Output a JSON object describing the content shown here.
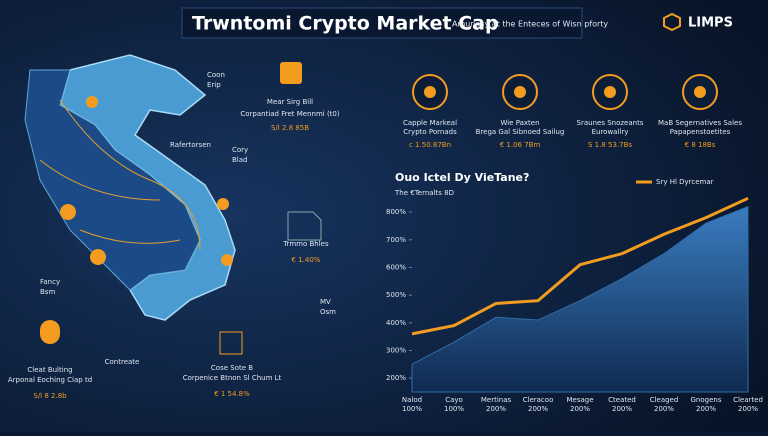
{
  "header": {
    "title": "Trwntomi Crypto Market Cap",
    "subtitle": "Amunasy at the Enteces of Wisn pforty",
    "logo": "LIMPS"
  },
  "features": [
    {
      "name": "Capple Markeal",
      "desc": "Crypto Pornads",
      "value": "c 1.50.87Bn"
    },
    {
      "name": "Wie Paxten",
      "desc": "Brega Gal Sibnoed Sailug",
      "value": "€ 1.06 7Bm"
    },
    {
      "name": "Sraunes Snozeants",
      "desc": "Eurowallry",
      "value": "S 1.8 53.7Bs"
    },
    {
      "name": "MaB Segernatives Sales",
      "desc": "Papapenstoetites",
      "value": "€ 8 18Bs"
    }
  ],
  "map": {
    "labels": [
      "Coon",
      "Erip",
      "Mear Sirg Bill",
      "Corpantiad Fret Mennmi (t0)",
      "S/l 2.8 85B",
      "Rafertorsen",
      "Cory",
      "Blad",
      "Trmmo Bhles",
      "€ 1.40%",
      "Fancy",
      "Bsm",
      "MV",
      "Osm",
      "Cleat Bulting",
      "Arponal Eoching Ciap td",
      "S/l 8 2.8b",
      "Contreate",
      "Cose Sote B",
      "Corpenice Btnon Sl Chum Lt",
      "€ 1 54.8%"
    ]
  },
  "chart_data": {
    "type": "line",
    "title": "Ouo Ictel Dy VieTane?",
    "subtitle": "The €Ternalts 8D",
    "categories": [
      "Nalod",
      "Cayo",
      "Mertinas",
      "Cleracoo",
      "Mesage",
      "Cteated",
      "Cleaged",
      "Gnogens",
      "Clearted"
    ],
    "category_notes": [
      "100%",
      "100%",
      "200%",
      "200%",
      "200%",
      "200%",
      "200%",
      "200%",
      "200%"
    ],
    "series": [
      {
        "name": "Sry Hl Dyrcemar",
        "color": "#f39c1f",
        "style": "line",
        "values": [
          360,
          390,
          470,
          480,
          610,
          650,
          720,
          780,
          850
        ]
      },
      {
        "color": "#2f6da8",
        "style": "area",
        "values": [
          250,
          330,
          420,
          410,
          480,
          560,
          650,
          760,
          820
        ]
      }
    ],
    "ylim": [
      150,
      880
    ],
    "yticks": [
      {
        "value": 800,
        "label": "800%"
      },
      {
        "value": 700,
        "label": "700%"
      },
      {
        "value": 600,
        "label": "600%"
      },
      {
        "value": 500,
        "label": "500%"
      },
      {
        "value": 400,
        "label": "400%"
      },
      {
        "value": 300,
        "label": "300%"
      },
      {
        "value": 200,
        "label": "200%"
      }
    ],
    "legend": "top-right"
  }
}
